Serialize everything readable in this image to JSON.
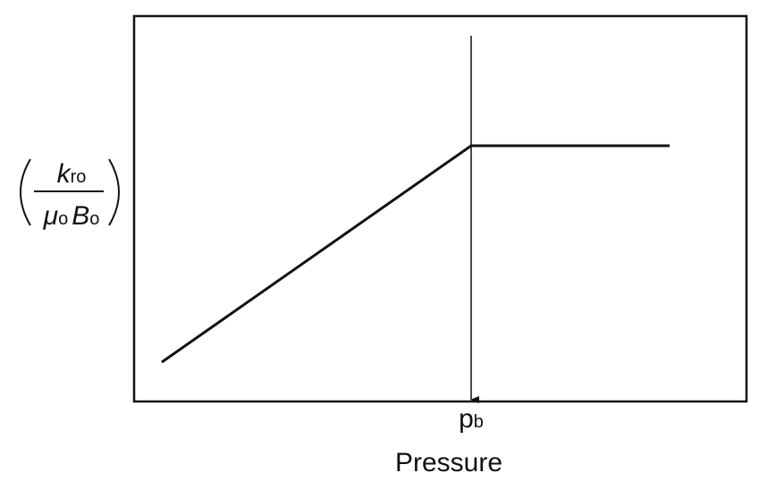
{
  "y_label": {
    "numerator": {
      "symbol": "k",
      "subscript": "ro"
    },
    "denominator": [
      {
        "symbol": "μ",
        "subscript": "o"
      },
      {
        "symbol": "B",
        "subscript": "o"
      }
    ]
  },
  "x_marker": {
    "symbol": "p",
    "subscript": "b"
  },
  "x_label": "Pressure"
}
